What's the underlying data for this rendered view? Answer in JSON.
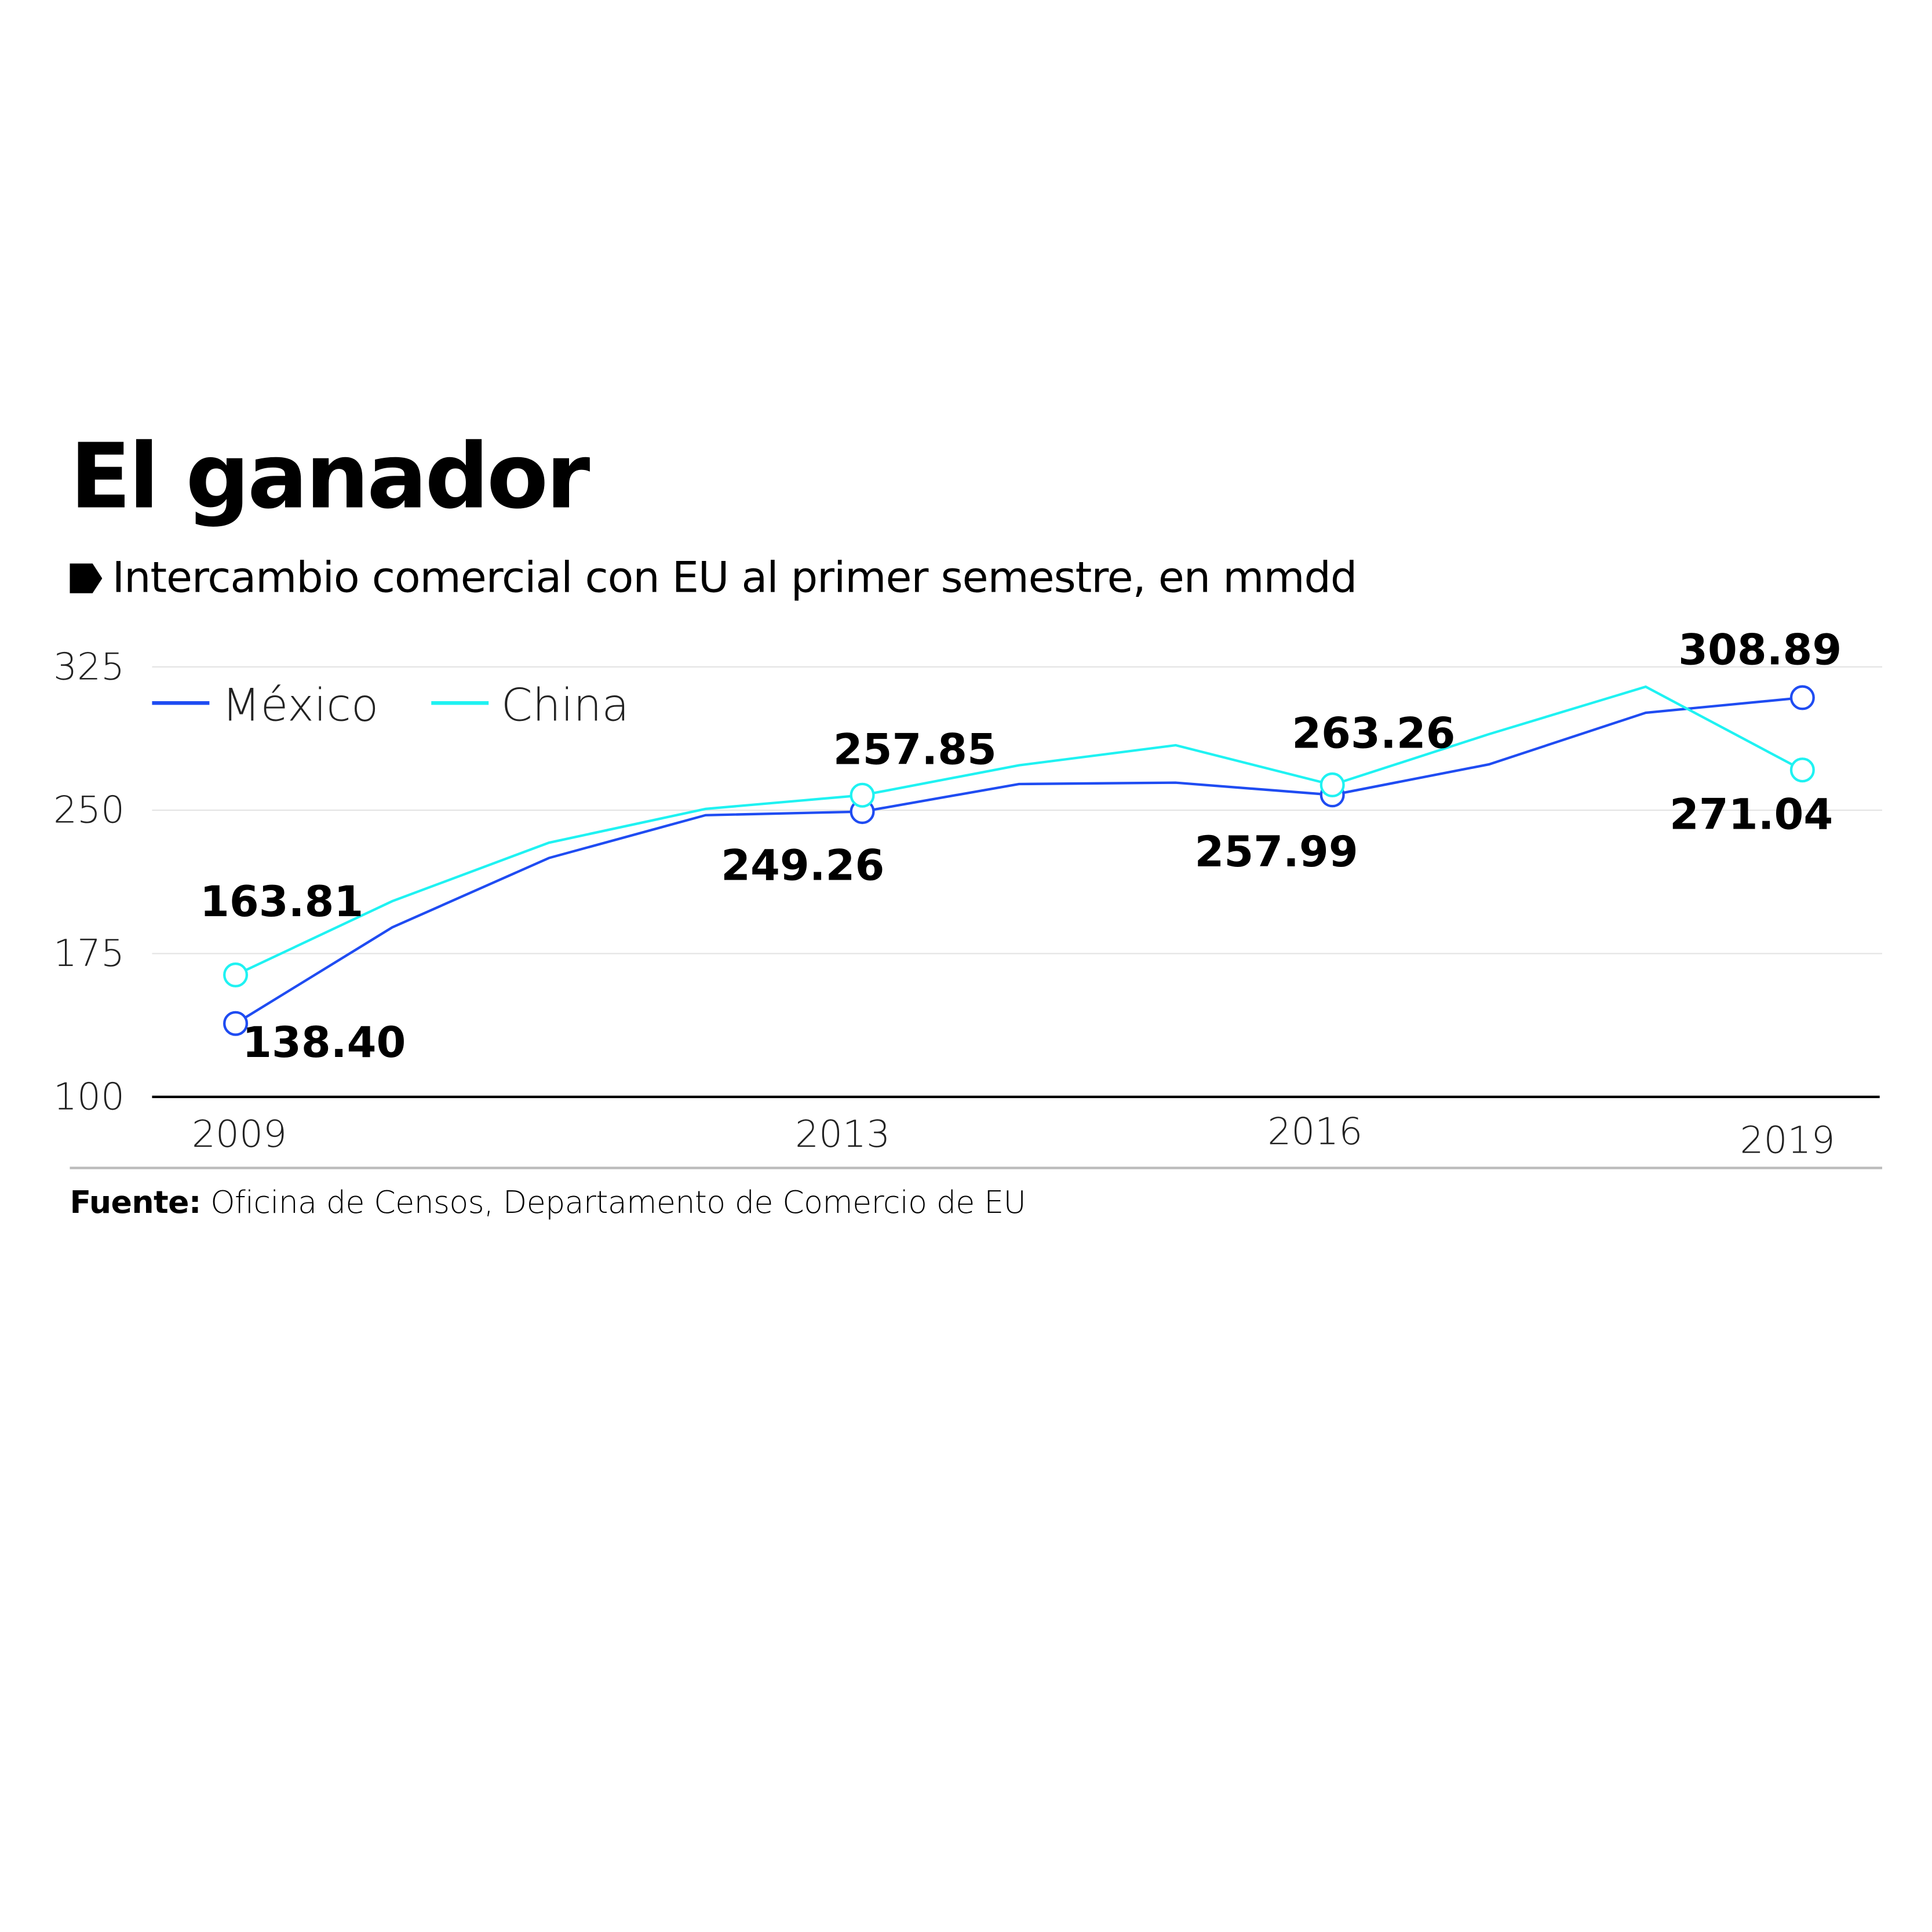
{
  "chart_data": {
    "type": "line",
    "title": "El ganador",
    "subtitle": "Intercambio comercial con EU al primer semestre, en mmdd",
    "source_label": "Fuente:",
    "source": "Oficina de Censos, Departamento de Comercio de EU",
    "x": [
      2009,
      2010,
      2011,
      2012,
      2013,
      2014,
      2015,
      2016,
      2017,
      2018,
      2019
    ],
    "x_tick_labels": [
      "2009",
      "2013",
      "2016",
      "2019"
    ],
    "y_ticks": [
      "100",
      "175",
      "250",
      "325"
    ],
    "ylim": [
      100,
      325
    ],
    "grid": true,
    "legend_placement": "top-left",
    "series": [
      {
        "name": "México",
        "color": "#1f4cf2",
        "values": [
          138.4,
          188.7,
          225.0,
          247.4,
          249.26,
          263.7,
          264.4,
          257.99,
          274.0,
          301.0,
          308.89
        ],
        "labels": {
          "2009": "138.40",
          "2013": "249.26",
          "2016": "257.99",
          "2019": "308.89"
        }
      },
      {
        "name": "China",
        "color": "#1ff2f2",
        "values": [
          163.81,
          202.4,
          233.0,
          250.7,
          257.85,
          273.5,
          284.0,
          263.26,
          289.8,
          314.6,
          271.04
        ],
        "labels": {
          "2009": "163.81",
          "2013": "257.85",
          "2016": "263.26",
          "2019": "271.04"
        }
      }
    ]
  }
}
